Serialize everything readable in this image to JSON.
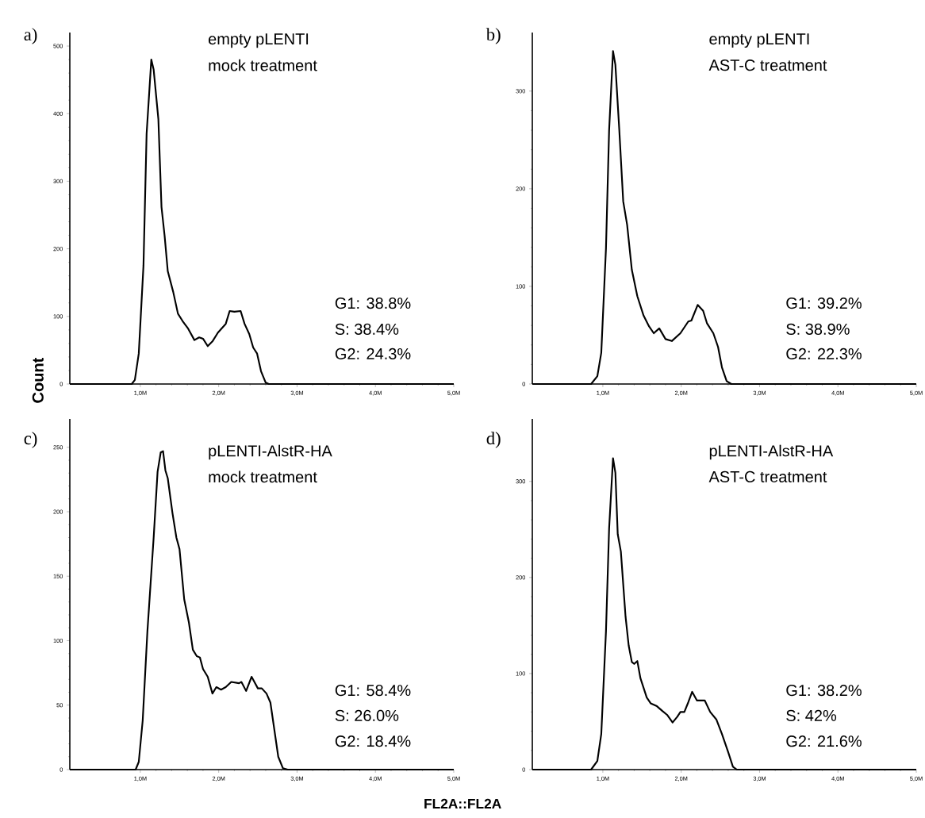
{
  "chart_data": [
    {
      "type": "line",
      "title": "empty pLENTI",
      "subtitle": "mock treatment",
      "ylabel": "Count",
      "annotations": [
        "a)",
        "G1: 38.8%",
        "S: 38.4%",
        "G2: 24.3%"
      ],
      "xlim": [
        0.1,
        5.0
      ],
      "ylim": [
        0,
        520
      ],
      "xticks": [
        {
          "value": 1,
          "label": "1,0M"
        },
        {
          "value": 2,
          "label": "2,0M"
        },
        {
          "value": 3,
          "label": "3,0M"
        },
        {
          "value": 4,
          "label": "4,0M"
        },
        {
          "value": 5,
          "label": "5,0M"
        }
      ],
      "yticks": [
        0,
        100,
        200,
        300,
        400,
        500
      ],
      "series": [
        {
          "color": "#000000",
          "x": [
            0.1,
            0.89,
            0.93,
            0.98,
            1.04,
            1.08,
            1.14,
            1.17,
            1.23,
            1.27,
            1.31,
            1.35,
            1.42,
            1.48,
            1.54,
            1.61,
            1.69,
            1.75,
            1.8,
            1.86,
            1.92,
            1.99,
            2.09,
            2.14,
            2.2,
            2.28,
            2.33,
            2.39,
            2.44,
            2.49,
            2.54,
            2.6,
            2.64,
            5.0
          ],
          "values": [
            0,
            0,
            6,
            45,
            175,
            370,
            480,
            465,
            392,
            262,
            219,
            167,
            136,
            104,
            93,
            82,
            65,
            69,
            67,
            56,
            63,
            76,
            89,
            108,
            107,
            108,
            89,
            74,
            54,
            45,
            19,
            2,
            0,
            0
          ]
        }
      ]
    },
    {
      "type": "line",
      "title": "empty pLENTI",
      "subtitle": "AST-C treatment",
      "annotations": [
        "b)",
        "G1: 39.2%",
        "S: 38.9%",
        "G2: 22.3%"
      ],
      "xlim": [
        0.1,
        5.0
      ],
      "ylim": [
        0,
        360
      ],
      "xticks": [
        {
          "value": 1,
          "label": "1,0M"
        },
        {
          "value": 2,
          "label": "2,0M"
        },
        {
          "value": 3,
          "label": "3,0M"
        },
        {
          "value": 4,
          "label": "4,0M"
        },
        {
          "value": 5,
          "label": "5,0M"
        }
      ],
      "yticks": [
        0,
        100,
        200,
        300
      ],
      "series": [
        {
          "color": "#000000",
          "x": [
            0.1,
            0.85,
            0.93,
            0.98,
            1.04,
            1.08,
            1.13,
            1.16,
            1.21,
            1.26,
            1.31,
            1.37,
            1.44,
            1.52,
            1.59,
            1.65,
            1.72,
            1.8,
            1.88,
            1.99,
            2.09,
            2.13,
            2.21,
            2.28,
            2.33,
            2.41,
            2.47,
            2.52,
            2.58,
            2.64,
            5.0
          ],
          "values": [
            0,
            0,
            8,
            32,
            139,
            260,
            341,
            327,
            260,
            187,
            163,
            117,
            90,
            70,
            59,
            52,
            57,
            46,
            44,
            52,
            64,
            65,
            81,
            75,
            62,
            52,
            38,
            17,
            3,
            0,
            0
          ]
        }
      ]
    },
    {
      "type": "line",
      "title": "pLENTI-AlstR-HA",
      "subtitle": "mock treatment",
      "xlabel": "FL2A::FL2A",
      "annotations": [
        "c)",
        "G1: 58.4%",
        "S: 26.0%",
        "G2: 18.4%"
      ],
      "xlim": [
        0.1,
        5.0
      ],
      "ylim": [
        0,
        272
      ],
      "xticks": [
        {
          "value": 1,
          "label": "1,0M"
        },
        {
          "value": 2,
          "label": "2,0M"
        },
        {
          "value": 3,
          "label": "3,0M"
        },
        {
          "value": 4,
          "label": "4,0M"
        },
        {
          "value": 5,
          "label": "5,0M"
        }
      ],
      "yticks": [
        0,
        50,
        100,
        150,
        200,
        250
      ],
      "series": [
        {
          "color": "#000000",
          "x": [
            0.1,
            0.94,
            0.98,
            1.03,
            1.09,
            1.17,
            1.22,
            1.26,
            1.29,
            1.32,
            1.35,
            1.41,
            1.46,
            1.5,
            1.56,
            1.62,
            1.67,
            1.72,
            1.76,
            1.8,
            1.86,
            1.92,
            1.97,
            2.03,
            2.09,
            2.16,
            2.26,
            2.29,
            2.35,
            2.42,
            2.5,
            2.55,
            2.61,
            2.66,
            2.71,
            2.76,
            2.82,
            2.88,
            5.0
          ],
          "values": [
            0,
            0,
            6,
            38,
            107,
            180,
            231,
            246,
            247,
            232,
            226,
            199,
            180,
            171,
            132,
            114,
            93,
            88,
            87,
            78,
            72,
            59,
            64,
            62,
            64,
            68,
            67,
            68,
            61,
            72,
            63,
            63,
            59,
            52,
            31,
            10,
            1,
            0,
            0
          ]
        }
      ]
    },
    {
      "type": "line",
      "title": "pLENTI-AlstR-HA",
      "subtitle": "AST-C treatment",
      "annotations": [
        "d)",
        "G1: 38.2%",
        "S: 42%",
        "G2: 21.6%"
      ],
      "xlim": [
        0.1,
        5.0
      ],
      "ylim": [
        0,
        365
      ],
      "xticks": [
        {
          "value": 1,
          "label": "1,0M"
        },
        {
          "value": 2,
          "label": "2,0M"
        },
        {
          "value": 3,
          "label": "3,0M"
        },
        {
          "value": 4,
          "label": "4,0M"
        },
        {
          "value": 5,
          "label": "5,0M"
        }
      ],
      "yticks": [
        0,
        100,
        200,
        300
      ],
      "series": [
        {
          "color": "#000000",
          "x": [
            0.1,
            0.85,
            0.93,
            0.98,
            1.04,
            1.08,
            1.13,
            1.16,
            1.19,
            1.23,
            1.29,
            1.33,
            1.37,
            1.4,
            1.44,
            1.48,
            1.56,
            1.61,
            1.69,
            1.76,
            1.82,
            1.89,
            1.95,
            1.99,
            2.04,
            2.09,
            2.14,
            2.2,
            2.3,
            2.37,
            2.45,
            2.52,
            2.6,
            2.66,
            2.71,
            5.0
          ],
          "values": [
            0,
            0,
            9,
            37,
            144,
            251,
            324,
            309,
            245,
            227,
            159,
            129,
            112,
            110,
            113,
            95,
            75,
            69,
            66,
            61,
            57,
            49,
            55,
            60,
            60,
            70,
            81,
            72,
            72,
            60,
            52,
            37,
            18,
            3,
            0,
            0
          ]
        }
      ]
    }
  ]
}
